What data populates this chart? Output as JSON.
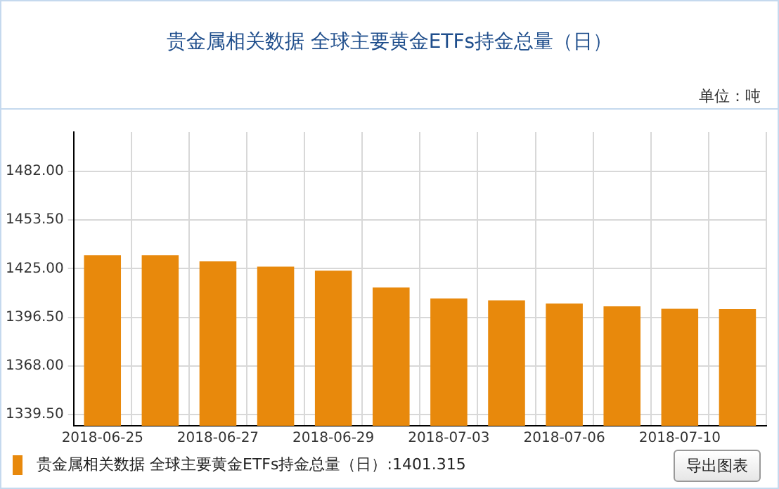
{
  "chart_data": {
    "type": "bar",
    "title": "贵金属相关数据 全球主要黄金ETFs持金总量（日）",
    "ylabel": "单位：吨",
    "categories": [
      "2018-06-25",
      null,
      "2018-06-27",
      null,
      "2018-06-29",
      null,
      "2018-07-03",
      null,
      "2018-07-06",
      null,
      "2018-07-10",
      null
    ],
    "series": [
      {
        "name": "贵金属相关数据 全球主要黄金ETFs持金总量（日）",
        "color": "#e8890c",
        "values": [
          1432.9,
          1432.9,
          1429.3,
          1426.2,
          1423.8,
          1414.0,
          1407.6,
          1406.4,
          1404.6,
          1403.0,
          1401.5,
          1401.315
        ]
      }
    ],
    "ylim": [
      1333,
      1505
    ],
    "yticks": [
      {
        "value": 1339.5,
        "label": "1339.50"
      },
      {
        "value": 1368,
        "label": "1368.00"
      },
      {
        "value": 1396.5,
        "label": "1396.50"
      },
      {
        "value": 1425,
        "label": "1425.00"
      },
      {
        "value": 1453.5,
        "label": "1453.50"
      },
      {
        "value": 1482,
        "label": "1482.00"
      }
    ],
    "grid": true,
    "legend": "bottom left",
    "annotations": [
      "导出图表",
      ":1401.315"
    ]
  }
}
